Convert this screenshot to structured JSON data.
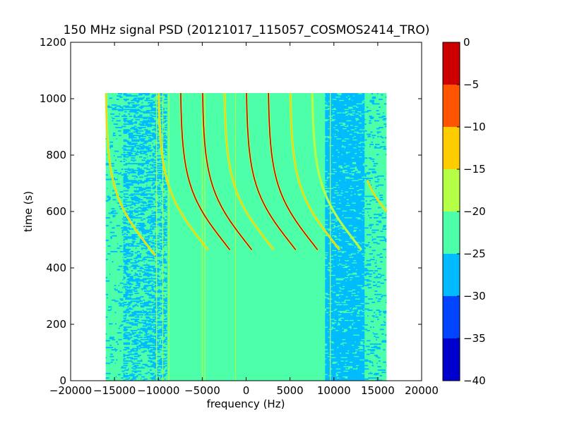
{
  "chart_data": {
    "type": "heatmap",
    "title": "150 MHz signal PSD (20121017_115057_COSMOS2414_TRO)",
    "xlabel": "frequency (Hz)",
    "ylabel": "time (s)",
    "xlim": [
      -20000,
      20000
    ],
    "ylim": [
      0,
      1200
    ],
    "xticks": [
      -20000,
      -15000,
      -10000,
      -5000,
      0,
      5000,
      10000,
      15000,
      20000
    ],
    "yticks": [
      0,
      200,
      400,
      600,
      800,
      1000,
      1200
    ],
    "data_extent": {
      "x": [
        -16000,
        16000
      ],
      "y": [
        0,
        1020
      ]
    },
    "background_level": -22.5,
    "grid": false,
    "colorbar": {
      "levels": [
        -40,
        -35,
        -30,
        -25,
        -20,
        -15,
        -10,
        -5,
        0
      ],
      "colors": [
        "#0000cc",
        "#0044ff",
        "#00bbff",
        "#4dffa8",
        "#b5ff46",
        "#ffcc00",
        "#ff5500",
        "#cc0000"
      ]
    },
    "bands": [
      {
        "x": [
          -14000,
          -9000
        ],
        "level": -27.5,
        "density": 0.45
      },
      {
        "x": [
          9000,
          13500
        ],
        "level": -27.5,
        "density": 0.85
      },
      {
        "x": [
          -16000,
          -14000
        ],
        "level": -27.5,
        "density": 0.12
      },
      {
        "x": [
          13500,
          16000
        ],
        "level": -27.5,
        "density": 0.15
      }
    ],
    "vertical_lines": [
      {
        "x": -10200,
        "y": [
          0,
          1020
        ],
        "level": -17.5
      },
      {
        "x": -9500,
        "y": [
          0,
          1020
        ],
        "level": -17.5
      },
      {
        "x": -8800,
        "y": [
          0,
          1020
        ],
        "level": -17.5
      },
      {
        "x": -5000,
        "y": [
          0,
          1020
        ],
        "level": -17.5
      },
      {
        "x": -4700,
        "y": [
          0,
          1020
        ],
        "level": -17.5
      },
      {
        "x": -1200,
        "y": [
          0,
          1020
        ],
        "level": -17.5
      },
      {
        "x": -3100,
        "y": [
          0,
          1020
        ],
        "level": -22.5
      },
      {
        "x": 9600,
        "y": [
          0,
          1020
        ],
        "level": -17.5
      }
    ],
    "traces": [
      {
        "t0": 490,
        "f0": 0,
        "span": 5000,
        "k": 200,
        "fmin": -11500,
        "fmax": 650,
        "level": -2.5
      },
      {
        "t0": 490,
        "f0": -2500,
        "span": 5000,
        "k": 200,
        "fmin": -14000,
        "fmax": -1800,
        "level": -2.5
      },
      {
        "t0": 490,
        "f0": -5000,
        "span": 5000,
        "k": 200,
        "fmin": -16000,
        "fmax": -4300,
        "level": -12.5
      },
      {
        "t0": 490,
        "f0": 2500,
        "span": 5000,
        "k": 200,
        "fmin": -9000,
        "fmax": 3200,
        "level": -12.5
      },
      {
        "t0": 490,
        "f0": 5000,
        "span": 5000,
        "k": 200,
        "fmin": -6500,
        "fmax": 5700,
        "level": -2.5
      },
      {
        "t0": 490,
        "f0": 7500,
        "span": 5000,
        "k": 200,
        "fmin": -4000,
        "fmax": 8200,
        "level": -2.5
      },
      {
        "t0": 490,
        "f0": 10000,
        "span": 5000,
        "k": 200,
        "fmin": -1500,
        "fmax": 10700,
        "level": -12.5
      },
      {
        "t0": 490,
        "f0": 12500,
        "span": 5000,
        "k": 200,
        "fmin": 1000,
        "fmax": 13200,
        "level": -17.5
      },
      {
        "t0": 470,
        "f0": -11000,
        "span": 5000,
        "k": 200,
        "fmin": -16000,
        "fmax": -10300,
        "level": -12.5
      },
      {
        "t0": 600,
        "f0": 16000,
        "span": 3000,
        "k": 120,
        "fmin": 13800,
        "fmax": 16000,
        "level": -12.5
      }
    ]
  }
}
